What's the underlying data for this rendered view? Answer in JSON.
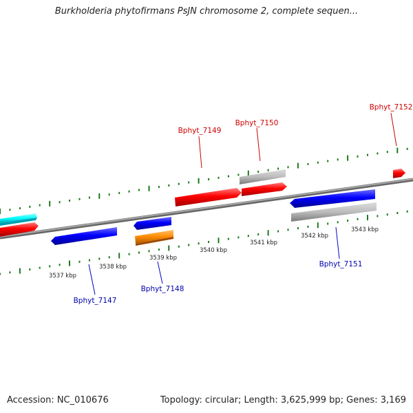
{
  "title": "Burkholderia phytofirmans PsJN chromosome 2, complete sequen...",
  "footer": {
    "accession": "Accession: NC_010676",
    "stats": "Topology: circular; Length: 3,625,999 bp; Genes: 3,169"
  },
  "colors": {
    "strand_plus": "#ff0000",
    "strand_minus": "#0000ff",
    "label_plus": "#cc0000",
    "label_minus": "#0000aa",
    "tick": "#1a7a1a",
    "axis": "#888888",
    "gray_feature": "#b8b8b8",
    "cyan_feature": "#00ffff",
    "orange_feature": "#ff8c00"
  },
  "ruler": {
    "tick_labels": [
      "3537 kbp",
      "3538 kbp",
      "3539 kbp",
      "3540 kbp",
      "3541 kbp",
      "3542 kbp",
      "3543 kbp"
    ]
  },
  "gene_labels": [
    {
      "text": "Bphyt_7147",
      "strand": "minus"
    },
    {
      "text": "Bphyt_7148",
      "strand": "minus"
    },
    {
      "text": "Bphyt_7149",
      "strand": "plus"
    },
    {
      "text": "Bphyt_7150",
      "strand": "plus"
    },
    {
      "text": "Bphyt_7151",
      "strand": "minus"
    },
    {
      "text": "Bphyt_7152",
      "strand": "plus"
    }
  ],
  "features": [
    {
      "id": "cyan-left",
      "color": "cyan"
    },
    {
      "id": "red-left",
      "color": "red"
    },
    {
      "id": "blue-7147",
      "color": "blue"
    },
    {
      "id": "blue-7148",
      "color": "blue"
    },
    {
      "id": "orange-7148",
      "color": "orange"
    },
    {
      "id": "red-7149",
      "color": "red"
    },
    {
      "id": "gray-7150",
      "color": "gray"
    },
    {
      "id": "red-7150",
      "color": "red"
    },
    {
      "id": "blue-7151",
      "color": "blue"
    },
    {
      "id": "gray-7151",
      "color": "gray"
    },
    {
      "id": "red-7152",
      "color": "red"
    }
  ]
}
